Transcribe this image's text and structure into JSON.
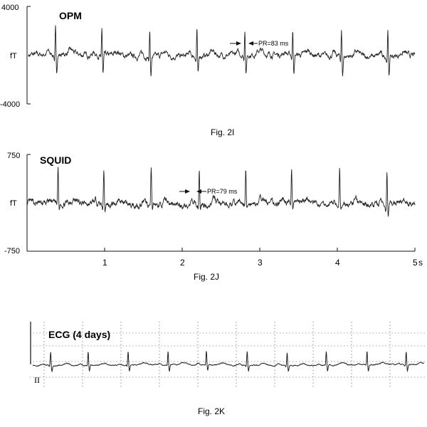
{
  "chart_data": [
    {
      "type": "line",
      "title": "OPM",
      "ylabel": "fT",
      "ylim": [
        -4000,
        4000
      ],
      "y_ticks": [
        "4000",
        "-4000"
      ],
      "duration_s": 5,
      "beats_s": [
        0.35,
        0.95,
        1.57,
        2.18,
        2.8,
        3.42,
        4.05,
        4.65
      ],
      "annotation": "PR=83 ms",
      "caption": "Fig. 2I"
    },
    {
      "type": "line",
      "title": "SQUID",
      "ylabel": "fT",
      "ylim": [
        -750,
        750
      ],
      "y_ticks": [
        "750",
        "-750"
      ],
      "xlim": [
        0,
        5
      ],
      "x_ticks": [
        "1",
        "2",
        "3",
        "4",
        "5"
      ],
      "x_unit": "s",
      "duration_s": 5,
      "beats_s": [
        0.4,
        0.99,
        1.6,
        2.22,
        2.82,
        3.41,
        4.03,
        4.64
      ],
      "annotation": "PR=79 ms",
      "caption": "Fig. 2J"
    },
    {
      "type": "line",
      "title": "ECG (4 days)",
      "lead_label": "II",
      "beats_s": [
        0.22,
        0.68,
        1.17,
        1.66,
        2.13,
        2.63,
        3.12,
        3.6,
        4.1,
        4.58
      ],
      "caption": "Fig. 2K"
    }
  ]
}
